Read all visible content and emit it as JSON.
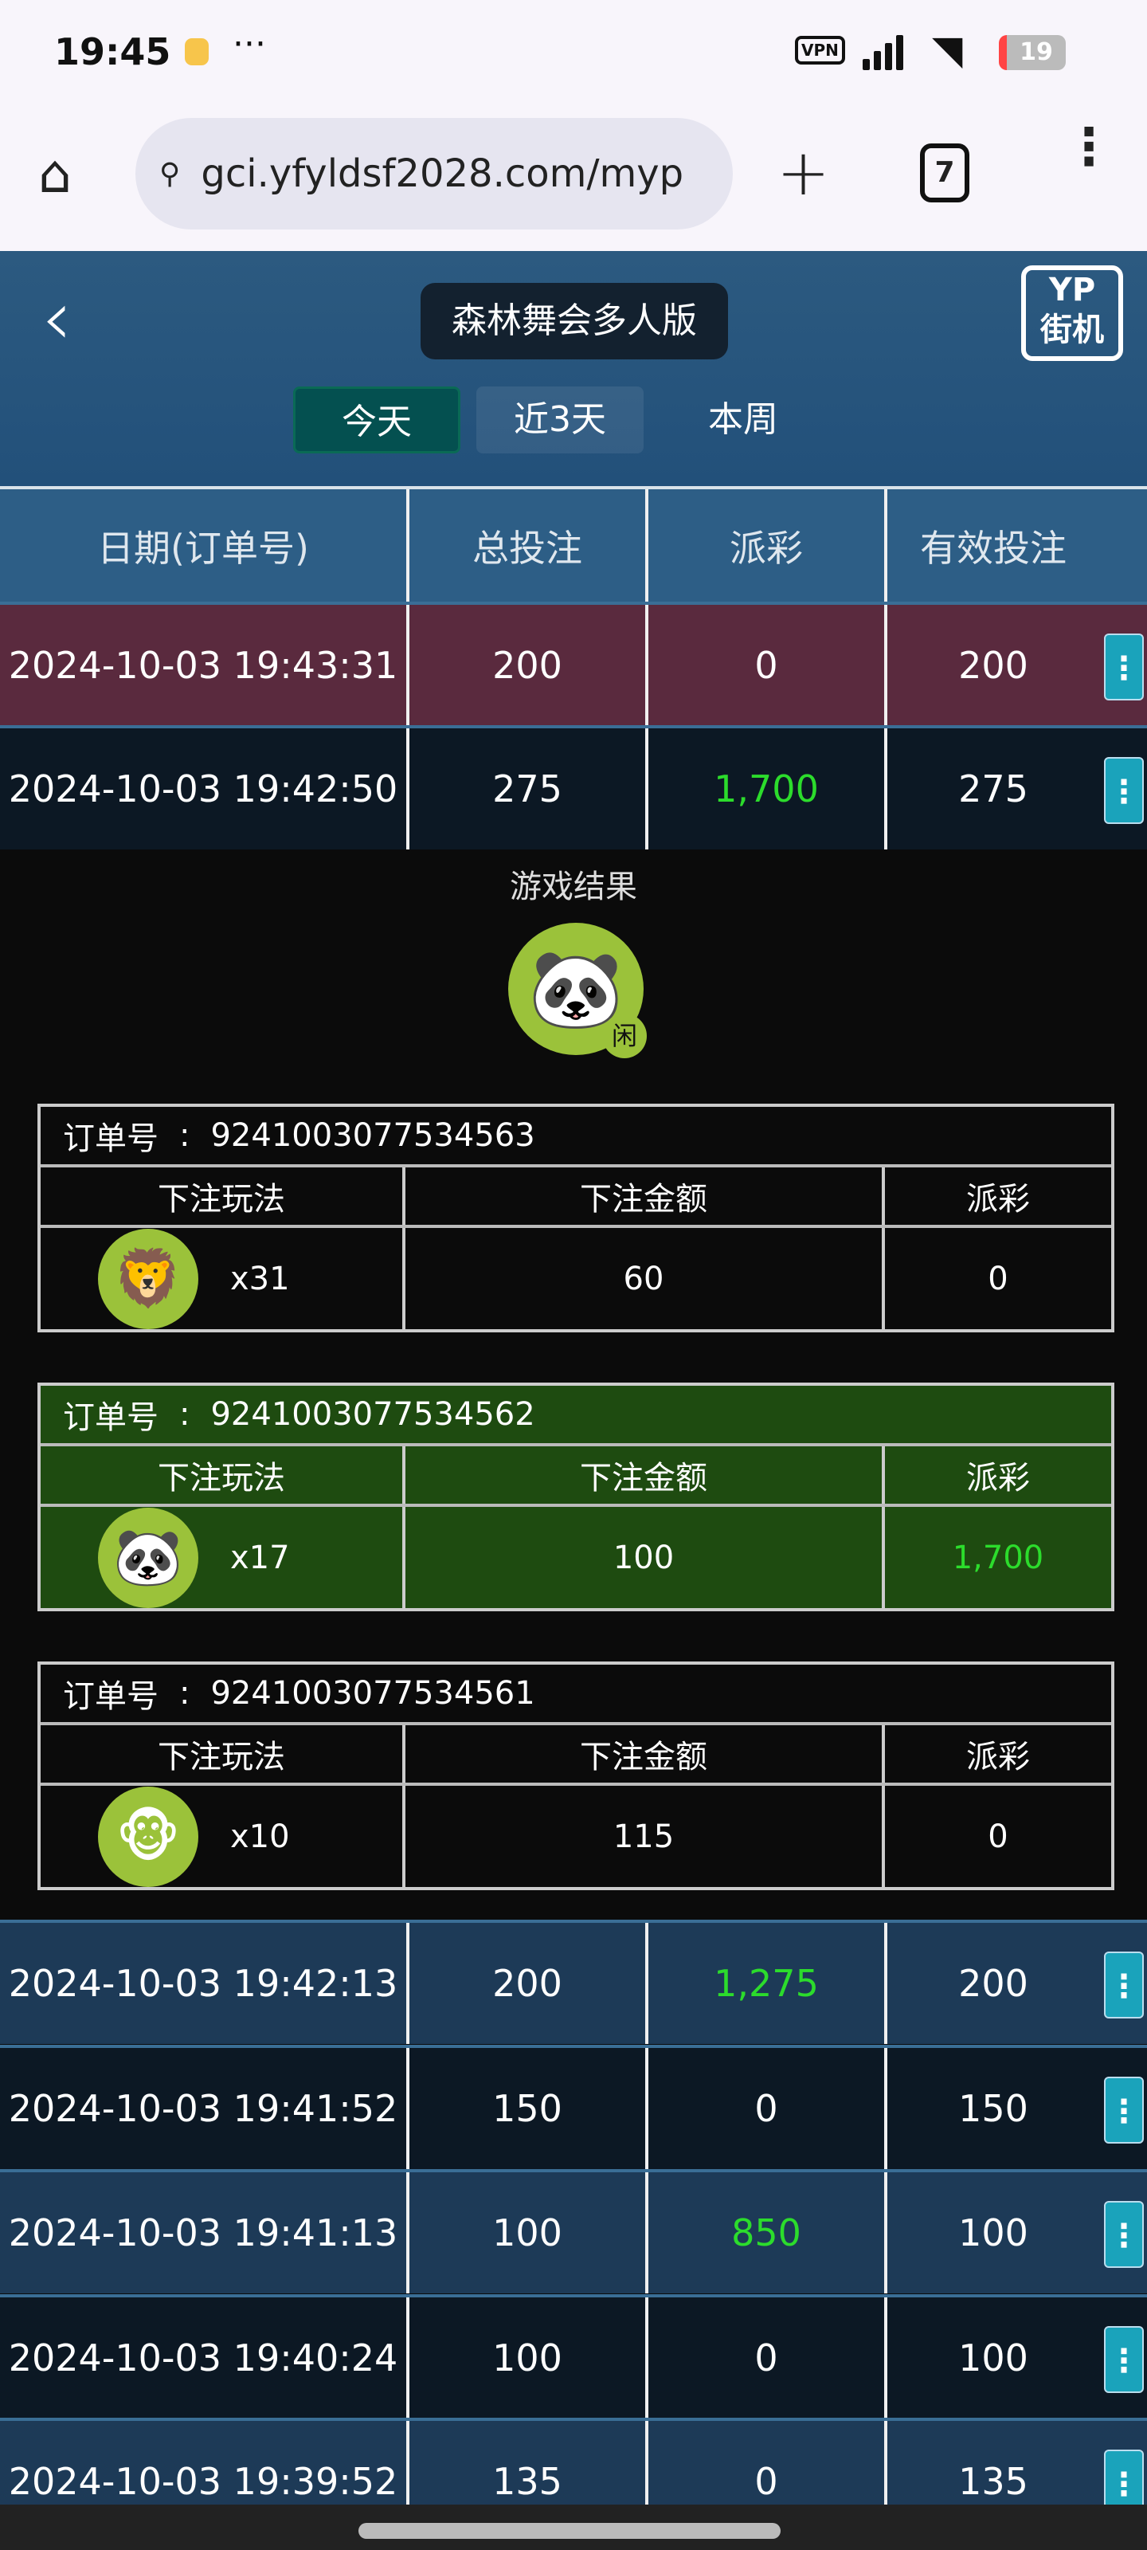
{
  "status_bar": {
    "time": "19:45",
    "vpn": "VPN",
    "battery": "19"
  },
  "browser": {
    "url": "gci.yfyldsf2028.com/myp",
    "tab_count": "7"
  },
  "header": {
    "title": "森林舞会多人版",
    "logo": "YP街机",
    "ranges": [
      "今天",
      "近3天",
      "本周"
    ],
    "active_range": "今天"
  },
  "table": {
    "columns": [
      "日期(订单号)",
      "总投注",
      "派彩",
      "有效投注"
    ],
    "rows_top": [
      {
        "date": "2024-10-03 19:43:31",
        "bet": "200",
        "payout": "0",
        "valid": "200"
      },
      {
        "date": "2024-10-03 19:42:50",
        "bet": "275",
        "payout": "1,700",
        "valid": "275"
      }
    ],
    "rows_bottom": [
      {
        "date": "2024-10-03 19:42:13",
        "bet": "200",
        "payout": "1,275",
        "valid": "200"
      },
      {
        "date": "2024-10-03 19:41:52",
        "bet": "150",
        "payout": "0",
        "valid": "150"
      },
      {
        "date": "2024-10-03 19:41:13",
        "bet": "100",
        "payout": "850",
        "valid": "100"
      },
      {
        "date": "2024-10-03 19:40:24",
        "bet": "100",
        "payout": "0",
        "valid": "100"
      },
      {
        "date": "2024-10-03 19:39:52",
        "bet": "135",
        "payout": "0",
        "valid": "135"
      }
    ]
  },
  "detail": {
    "title": "游戏结果",
    "result_animal": "panda",
    "result_badge": "闲",
    "order_label": "订单号",
    "colon": ":",
    "columns": [
      "下注玩法",
      "下注金额",
      "派彩"
    ],
    "orders": [
      {
        "order_no": "9241003077534563",
        "animal": "lion",
        "multiplier": "x31",
        "amount": "60",
        "payout": "0"
      },
      {
        "order_no": "9241003077534562",
        "animal": "panda",
        "multiplier": "x17",
        "amount": "100",
        "payout": "1,700"
      },
      {
        "order_no": "9241003077534561",
        "animal": "monkey",
        "multiplier": "x10",
        "amount": "115",
        "payout": "0"
      }
    ]
  },
  "colors": {
    "win": "#2cdc2c",
    "win_row": "#1e4b10",
    "accent": "#1aa3bb"
  }
}
